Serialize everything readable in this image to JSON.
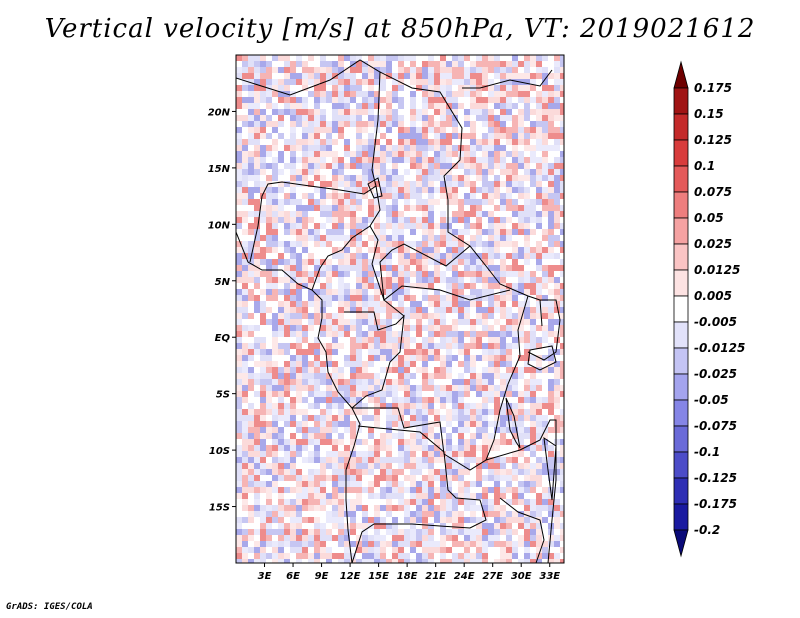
{
  "title": "Vertical velocity [m/s] at 850hPa, VT: 2019021612",
  "credit": "GrADS: IGES/COLA",
  "map": {
    "lat_ticks": [
      "20N",
      "15N",
      "10N",
      "5N",
      "EQ",
      "5S",
      "10S",
      "15S"
    ],
    "lon_ticks": [
      "3E",
      "6E",
      "9E",
      "12E",
      "15E",
      "18E",
      "21E",
      "24E",
      "27E",
      "30E",
      "33E"
    ],
    "lat_range": [
      -20,
      25
    ],
    "lon_range": [
      0,
      34.5
    ]
  },
  "colorbar": {
    "labels": [
      "0.175",
      "0.15",
      "0.125",
      "0.1",
      "0.075",
      "0.05",
      "0.025",
      "0.0125",
      "0.005",
      "-0.005",
      "-0.0125",
      "-0.025",
      "-0.05",
      "-0.075",
      "-0.1",
      "-0.125",
      "-0.175",
      "-0.2"
    ],
    "colors": [
      "#6e0000",
      "#a01414",
      "#c42a2a",
      "#d83c3c",
      "#e45a5a",
      "#ee7e7e",
      "#f5a2a2",
      "#fac4c4",
      "#fde3e3",
      "#ffffff",
      "#e2e2fa",
      "#c4c4f4",
      "#a4a4ee",
      "#8585e6",
      "#6a6ad8",
      "#4c4cc8",
      "#2e2eb4",
      "#1a1aa0",
      "#0a0a78"
    ]
  }
}
